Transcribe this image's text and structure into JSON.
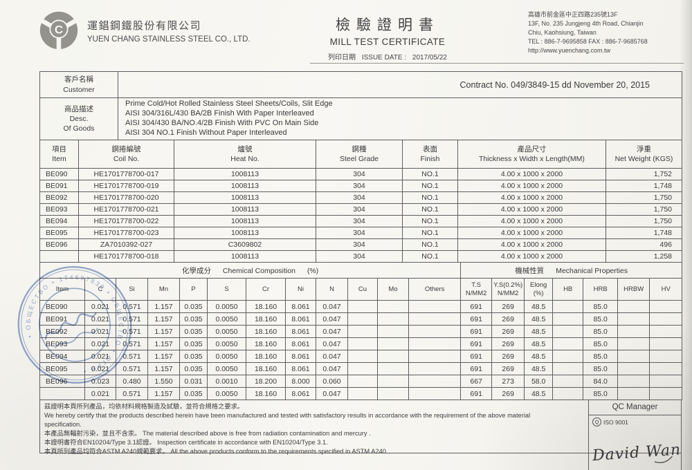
{
  "header": {
    "company_cn": "運錩鋼鐵股份有限公司",
    "company_en": "YUEN CHANG STAINLESS STEEL CO., LTD.",
    "title_cn": "檢驗證明書",
    "title_en": "MILL TEST CERTIFICATE",
    "issue_date_label_cn": "列印日期",
    "issue_date_label_en": "ISSUE DATE :",
    "issue_date": "2017/05/22",
    "address_line1": "高雄市前金區中正四路235號13F",
    "address_line2": "13F, No. 235 Jungjeng 4th Road, Chianjin",
    "address_line3": "Chiu, Kaohsiung, Taiwan",
    "address_line4": "TEL : 886-7-9695858   FAX : 886-7-9685768",
    "address_line5": "http://www.yuenchang.com.tw"
  },
  "info": {
    "customer_label_cn": "客戶名稱",
    "customer_label_en": "Customer",
    "customer_value": "",
    "contract": "Contract No. 049/3849-15 dd November 20, 2015",
    "desc_label_cn": "商品描述",
    "desc_label_en1": "Desc.",
    "desc_label_en2": "Of Goods",
    "desc_lines": [
      "Prime Cold/Hot Rolled Stainless Steel Sheets/Coils, Slit Edge",
      "AISI 304/316L/430 BA/2B Finish With Paper Interleaved",
      "AISI 304/430 BA/NO.4/2B Finish With PVC On Main Side",
      "AISI 304 NO.1 Finish Without Paper Interleaved"
    ]
  },
  "product_table": {
    "headers": [
      {
        "cn": "項目",
        "en": "Item"
      },
      {
        "cn": "鋼捲編號",
        "en": "Coil No."
      },
      {
        "cn": "爐號",
        "en": "Heat No."
      },
      {
        "cn": "鋼種",
        "en": "Steel Grade"
      },
      {
        "cn": "表面",
        "en": "Finish"
      },
      {
        "cn": "產品尺寸",
        "en": "Thickness x Width x Length(MM)"
      },
      {
        "cn": "淨重",
        "en": "Net Weight (KGS)"
      }
    ],
    "rows": [
      [
        "BE090",
        "HE1701778700-017",
        "1008113",
        "304",
        "NO.1",
        "4.00 x 1000 x 2000",
        "1,752"
      ],
      [
        "BE091",
        "HE1701778700-019",
        "1008113",
        "304",
        "NO.1",
        "4.00 x 1000 x 2000",
        "1,748"
      ],
      [
        "BE092",
        "HE1701778700-020",
        "1008113",
        "304",
        "NO.1",
        "4.00 x 1000 x 2000",
        "1,750"
      ],
      [
        "BE093",
        "HE1701778700-021",
        "1008113",
        "304",
        "NO.1",
        "4.00 x 1000 x 2000",
        "1,750"
      ],
      [
        "BE094",
        "HE1701778700-022",
        "1008113",
        "304",
        "NO.1",
        "4.00 x 1000 x 2000",
        "1,750"
      ],
      [
        "BE095",
        "HE1701778700-023",
        "1008113",
        "304",
        "NO.1",
        "4.00 x 1000 x 2000",
        "1,748"
      ],
      [
        "BE096",
        "ZA7010392-027",
        "C3609802",
        "304",
        "NO.1",
        "4.00 x 1000 x 2000",
        "496"
      ],
      [
        "",
        "HE1701778700-018",
        "1008113",
        "304",
        "NO.1",
        "4.00 x 1000 x 2000",
        "1,258"
      ]
    ]
  },
  "chem_table": {
    "section_cn": "化學成分",
    "section_en": "Chemical Composition",
    "section_unit": "(%)",
    "mech_section_cn": "機械性質",
    "mech_section_en": "Mechanical Properties",
    "headers": [
      "Item",
      "C",
      "Si",
      "Mn",
      "P",
      "S",
      "Cr",
      "Ni",
      "N",
      "Cu",
      "Mo",
      "Others",
      "T.S\nN/MM2",
      "Y.S(0.2%)\nN/MM2",
      "Elong\n(%)",
      "HB",
      "HRB",
      "HRBW",
      "HV"
    ],
    "rows": [
      [
        "BE090",
        "0.021",
        "0.571",
        "1.157",
        "0.035",
        "0.0050",
        "18.160",
        "8.061",
        "0.047",
        "",
        "",
        "",
        "691",
        "269",
        "48.5",
        "",
        "85.0",
        "",
        ""
      ],
      [
        "BE091",
        "0.021",
        "0.571",
        "1.157",
        "0.035",
        "0.0050",
        "18.160",
        "8.061",
        "0.047",
        "",
        "",
        "",
        "691",
        "269",
        "48.5",
        "",
        "85.0",
        "",
        ""
      ],
      [
        "BE092",
        "0.021",
        "0.571",
        "1.157",
        "0.035",
        "0.0050",
        "18.160",
        "8.061",
        "0.047",
        "",
        "",
        "",
        "691",
        "269",
        "48.5",
        "",
        "85.0",
        "",
        ""
      ],
      [
        "BE093",
        "0.021",
        "0.571",
        "1.157",
        "0.035",
        "0.0050",
        "18.160",
        "8.061",
        "0.047",
        "",
        "",
        "",
        "691",
        "269",
        "48.5",
        "",
        "85.0",
        "",
        ""
      ],
      [
        "BE094",
        "0.021",
        "0.571",
        "1.157",
        "0.035",
        "0.0050",
        "18.160",
        "8.061",
        "0.047",
        "",
        "",
        "",
        "691",
        "269",
        "48.5",
        "",
        "85.0",
        "",
        ""
      ],
      [
        "BE095",
        "0.021",
        "0.571",
        "1.157",
        "0.035",
        "0.0050",
        "18.160",
        "8.061",
        "0.047",
        "",
        "",
        "",
        "691",
        "269",
        "48.5",
        "",
        "85.0",
        "",
        ""
      ],
      [
        "BE096",
        "0.023",
        "0.480",
        "1.550",
        "0.031",
        "0.0010",
        "18.200",
        "8.000",
        "0.060",
        "",
        "",
        "",
        "667",
        "273",
        "58.0",
        "",
        "84.0",
        "",
        ""
      ],
      [
        "",
        "0.021",
        "0.571",
        "1.157",
        "0.035",
        "0.0050",
        "18.160",
        "8.061",
        "0.047",
        "",
        "",
        "",
        "691",
        "269",
        "48.5",
        "",
        "85.0",
        "",
        ""
      ]
    ]
  },
  "footer": {
    "cert_lines": [
      "茲證明本頁所列產品，均依材料規格製造及試驗，並符合規格之要求。",
      "We hereby certify that the products described herein have been manufactured and tested with  satisfactory results in accordance with the requirement of the above material",
      "specification.",
      "本產品無輻射污染，並且不含汞。 The material described above is free from radiation contamination and mercury .",
      "本證明書符合EN10204/Type 3.1認證。 Inspection certificate in accordance with EN10204/Type 3.1.",
      "本頁所列產品均符合ASTM A240規範要求。 All the above products conform to the requirements specified in ASTM A240."
    ],
    "qc_title": "QC Manager",
    "iso_label": "ISO 9001",
    "iso_icon_letter": "Q",
    "qc_signature": "David Wang"
  },
  "stamp": {
    "color": "#4467af",
    "arc_text": "• ОБЩЕСТВО • 174697839 • ОБЩЕСТВО • ОГРН •"
  }
}
